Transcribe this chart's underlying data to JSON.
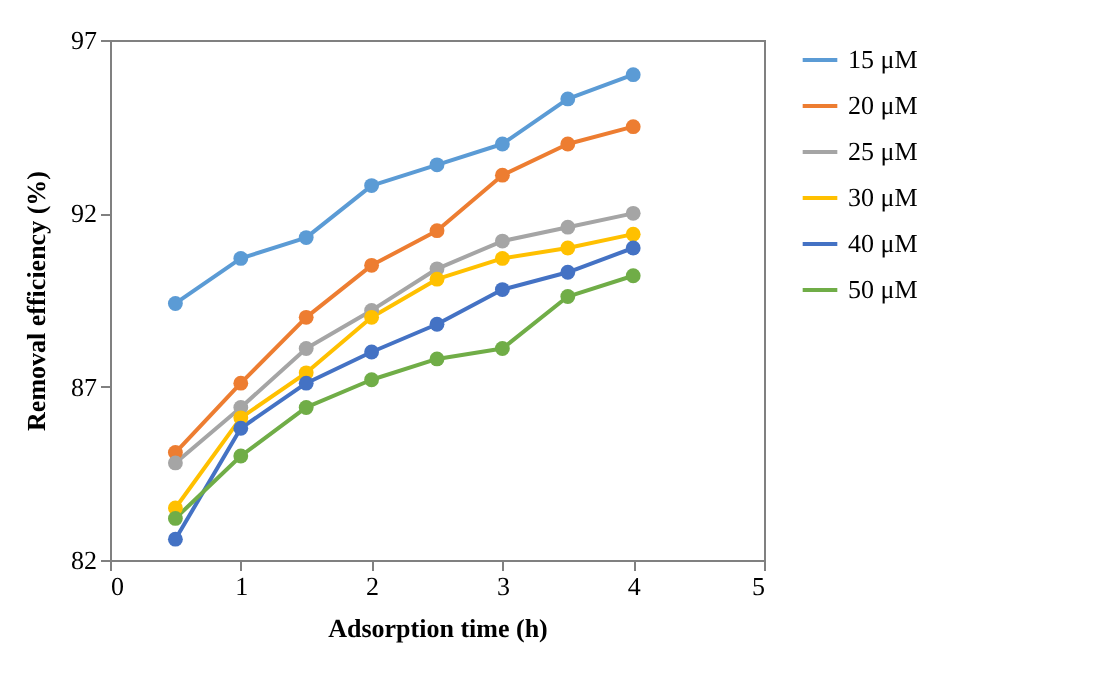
{
  "chart_data": {
    "type": "line",
    "xlabel": "Adsorption time (h)",
    "ylabel": "Removal efficiency (%)",
    "x": [
      0.5,
      1,
      1.5,
      2,
      2.5,
      3,
      3.5,
      4
    ],
    "series": [
      {
        "name": "15 μM",
        "color": "#5b9bd5",
        "values": [
          89.4,
          90.7,
          91.3,
          92.8,
          93.4,
          94.0,
          95.3,
          96.0
        ]
      },
      {
        "name": "20 μM",
        "color": "#ed7d31",
        "values": [
          85.1,
          87.1,
          89.0,
          90.5,
          91.5,
          93.1,
          94.0,
          94.5
        ]
      },
      {
        "name": "25 μM",
        "color": "#a5a5a5",
        "values": [
          84.8,
          86.4,
          88.1,
          89.2,
          90.4,
          91.2,
          91.6,
          92.0
        ]
      },
      {
        "name": "30 μM",
        "color": "#ffc000",
        "values": [
          83.5,
          86.1,
          87.4,
          89.0,
          90.1,
          90.7,
          91.0,
          91.4
        ]
      },
      {
        "name": "40 μM",
        "color": "#4472c4",
        "values": [
          82.6,
          85.8,
          87.1,
          88.0,
          88.8,
          89.8,
          90.3,
          91.0
        ]
      },
      {
        "name": "50 μM",
        "color": "#70ad47",
        "values": [
          83.2,
          85.0,
          86.4,
          87.2,
          87.8,
          88.1,
          89.6,
          90.2
        ]
      }
    ],
    "xlim": [
      0,
      5
    ],
    "xticks": [
      0,
      1,
      2,
      3,
      4,
      5
    ],
    "ylim": [
      82,
      97
    ],
    "yticks": [
      82,
      87,
      92,
      97
    ],
    "grid": false,
    "legend": "right",
    "marker": "circle",
    "line_style": "solid"
  }
}
